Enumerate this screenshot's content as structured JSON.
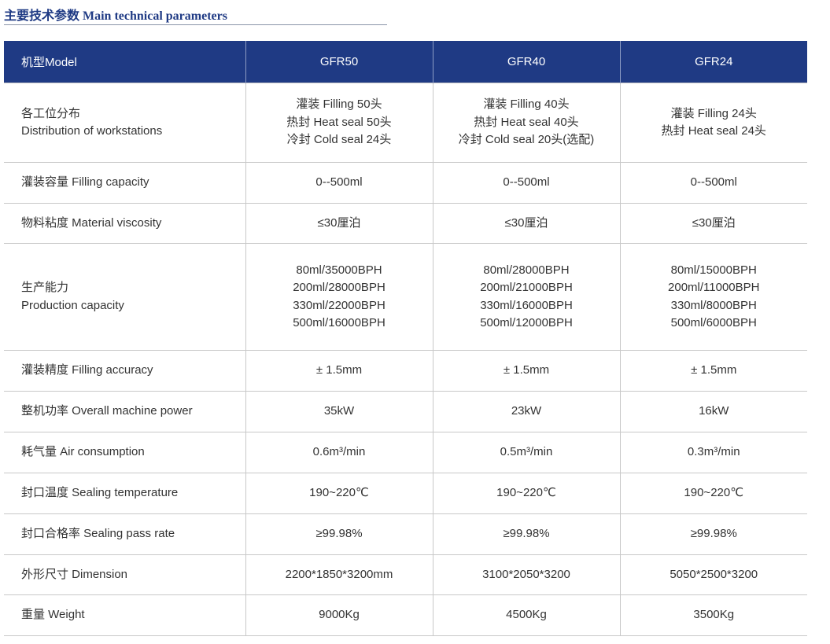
{
  "title": "主要技术参数 Main technical parameters",
  "header": {
    "label": "机型Model",
    "models": [
      "GFR50",
      "GFR40",
      "GFR24"
    ]
  },
  "colors": {
    "header_bg": "#1f3a84",
    "title": "#1f3a84",
    "grid": "#c8c8c8"
  },
  "rows": [
    {
      "label": [
        "各工位分布",
        "Distribution of workstations"
      ],
      "values": [
        [
          "灌装 Filling 50头",
          "热封 Heat seal 50头",
          "冷封 Cold seal 24头"
        ],
        [
          "灌装 Filling 40头",
          "热封 Heat seal 40头",
          "冷封 Cold seal 20头(选配)"
        ],
        [
          "灌装 Filling 24头",
          "热封 Heat seal 24头"
        ]
      ]
    },
    {
      "label": [
        "灌装容量 Filling capacity"
      ],
      "values": [
        [
          "0--500ml"
        ],
        [
          "0--500ml"
        ],
        [
          "0--500ml"
        ]
      ]
    },
    {
      "label": [
        "物料粘度 Material viscosity"
      ],
      "values": [
        [
          "≤30厘泊"
        ],
        [
          "≤30厘泊"
        ],
        [
          "≤30厘泊"
        ]
      ]
    },
    {
      "label": [
        "生产能力",
        "Production capacity"
      ],
      "values": [
        [
          "80ml/35000BPH",
          "200ml/28000BPH",
          "330ml/22000BPH",
          "500ml/16000BPH"
        ],
        [
          "80ml/28000BPH",
          "200ml/21000BPH",
          "330ml/16000BPH",
          "500ml/12000BPH"
        ],
        [
          "80ml/15000BPH",
          "200ml/11000BPH",
          "330ml/8000BPH",
          "500ml/6000BPH"
        ]
      ]
    },
    {
      "label": [
        "灌装精度 Filling accuracy"
      ],
      "values": [
        [
          "± 1.5mm"
        ],
        [
          "± 1.5mm"
        ],
        [
          "± 1.5mm"
        ]
      ]
    },
    {
      "label": [
        "整机功率 Overall machine power"
      ],
      "values": [
        [
          "35kW"
        ],
        [
          "23kW"
        ],
        [
          "16kW"
        ]
      ]
    },
    {
      "label": [
        "耗气量 Air consumption"
      ],
      "values": [
        [
          "0.6m³/min"
        ],
        [
          "0.5m³/min"
        ],
        [
          "0.3m³/min"
        ]
      ]
    },
    {
      "label": [
        "封口温度 Sealing temperature"
      ],
      "values": [
        [
          "190~220℃"
        ],
        [
          "190~220℃"
        ],
        [
          "190~220℃"
        ]
      ]
    },
    {
      "label": [
        "封口合格率 Sealing pass rate"
      ],
      "values": [
        [
          "≥99.98%"
        ],
        [
          "≥99.98%"
        ],
        [
          "≥99.98%"
        ]
      ]
    },
    {
      "label": [
        "外形尺寸 Dimension"
      ],
      "values": [
        [
          "2200*1850*3200mm"
        ],
        [
          "3100*2050*3200"
        ],
        [
          "5050*2500*3200"
        ]
      ]
    },
    {
      "label": [
        "重量 Weight"
      ],
      "values": [
        [
          "9000Kg"
        ],
        [
          "4500Kg"
        ],
        [
          "3500Kg"
        ]
      ]
    }
  ]
}
